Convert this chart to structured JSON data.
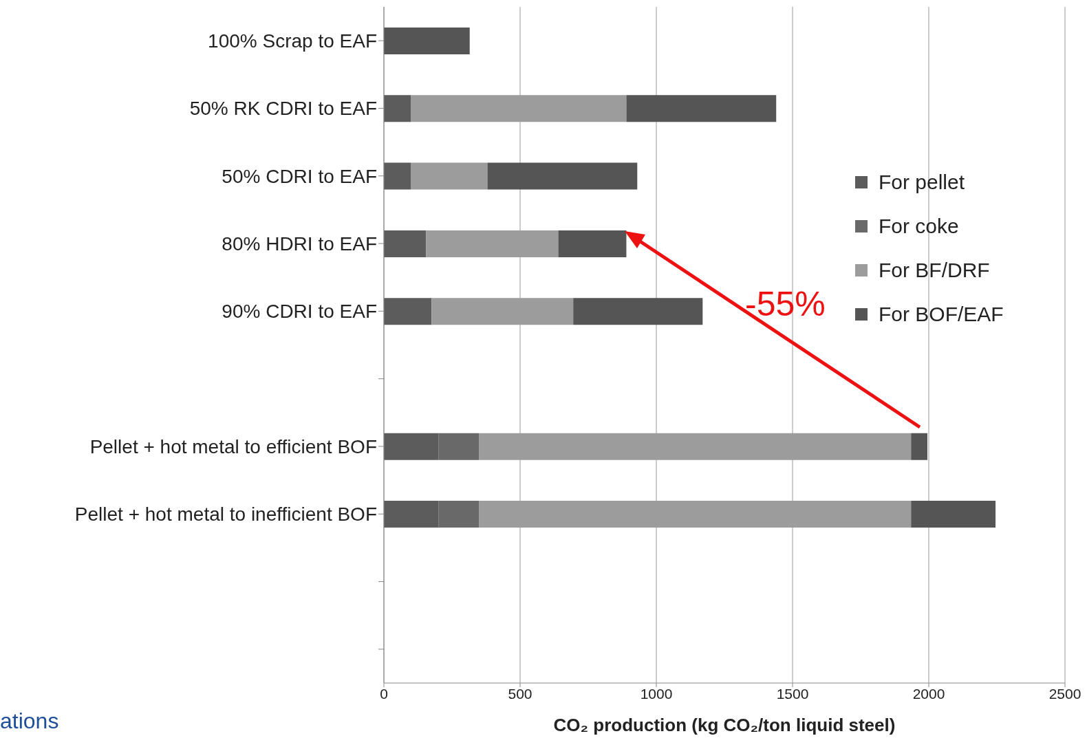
{
  "chart_data": {
    "type": "bar",
    "orientation": "horizontal",
    "stacked": true,
    "categories": [
      "100% Scrap to EAF",
      "50% RK CDRI to EAF",
      "50% CDRI to EAF",
      "80% HDRI to EAF",
      "90% CDRI to EAF",
      null,
      "Pellet + hot metal to efficient BOF",
      "Pellet + hot metal to inefficient BOF",
      null,
      null
    ],
    "series": [
      {
        "name": "For pellet",
        "color": "#5c5c5c",
        "values": [
          null,
          100,
          100,
          155,
          175,
          null,
          200,
          200,
          null,
          null
        ]
      },
      {
        "name": "For coke",
        "color": "#696969",
        "values": [
          null,
          null,
          null,
          null,
          null,
          null,
          150,
          150,
          null,
          null
        ]
      },
      {
        "name": "For BF/DRF",
        "color": "#9c9c9c",
        "values": [
          null,
          790,
          280,
          485,
          520,
          null,
          1585,
          1585,
          null,
          null
        ]
      },
      {
        "name": "For BOF/EAF",
        "color": "#555555",
        "values": [
          315,
          550,
          550,
          250,
          475,
          null,
          60,
          310,
          null,
          null
        ]
      }
    ],
    "xlabel": "CO₂ production (kg CO₂/ton liquid steel)",
    "xlim": [
      0,
      2500
    ],
    "xticks": [
      0,
      500,
      1000,
      1500,
      2000,
      2500
    ],
    "grid": "x",
    "legend": "right",
    "annotations": [
      "-55%",
      "ations"
    ]
  }
}
